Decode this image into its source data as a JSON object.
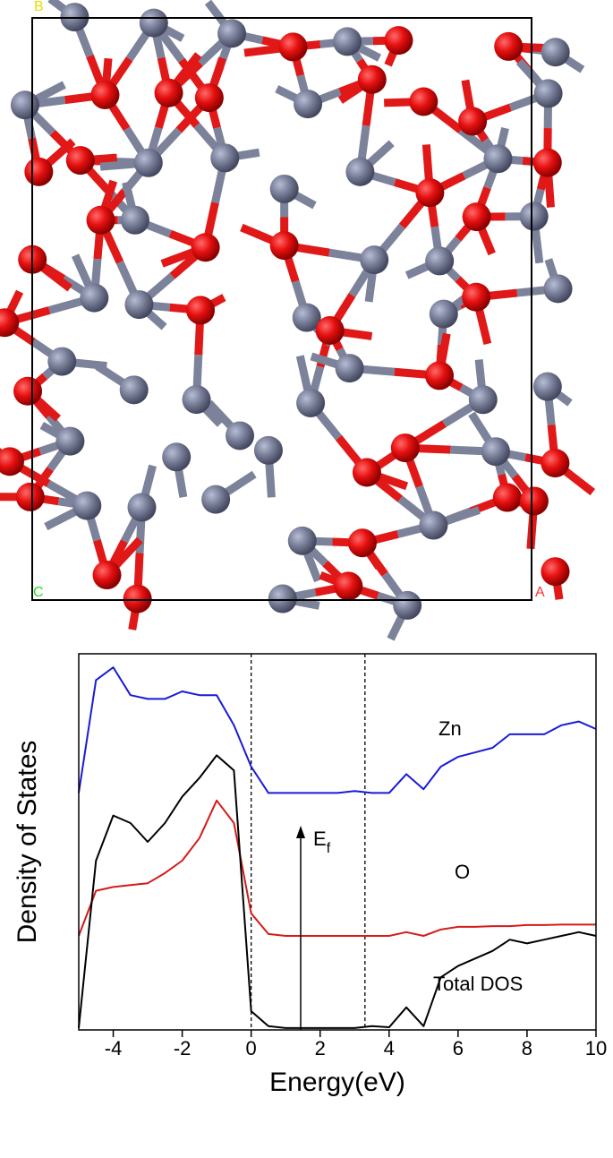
{
  "structure": {
    "labels": [
      "B",
      "C",
      "A"
    ]
  },
  "chart_data": {
    "type": "line",
    "xlabel": "Energy(eV)",
    "ylabel": "Density of States",
    "x": [
      -5,
      -4.5,
      -4,
      -3.5,
      -3,
      -2.5,
      -2,
      -1.5,
      -1,
      -0.5,
      0,
      0.5,
      1,
      1.5,
      2,
      2.5,
      3,
      3.5,
      4,
      4.5,
      5,
      5.5,
      6,
      6.5,
      7,
      7.5,
      8,
      8.5,
      9,
      9.5,
      10
    ],
    "xlim": [
      -5,
      10
    ],
    "xticks": [
      -4,
      -2,
      0,
      2,
      4,
      6,
      8,
      10
    ],
    "ylim": [
      0,
      100
    ],
    "vlines": [
      0,
      3.3
    ],
    "annotation": {
      "text": "E",
      "subscript": "f"
    },
    "series": [
      {
        "name": "Zn",
        "color": "#1a1ad6",
        "values": [
          63,
          93,
          96.4,
          89,
          88,
          88,
          90,
          89,
          89,
          81,
          70,
          63,
          63,
          63,
          63,
          63,
          63.5,
          63,
          63,
          68,
          64,
          70,
          72.6,
          73.8,
          75,
          78.6,
          78.6,
          78.6,
          81,
          82,
          80
        ]
      },
      {
        "name": "O",
        "color": "#d61a1a",
        "values": [
          25,
          37,
          38,
          38.5,
          39,
          41.7,
          45,
          51,
          61,
          55,
          31,
          25.5,
          25,
          25,
          25,
          25,
          25,
          25,
          25,
          26,
          25,
          26.7,
          27.4,
          27.4,
          27.6,
          27.6,
          27.9,
          27.9,
          28,
          28,
          28
        ]
      },
      {
        "name": "Total DOS",
        "color": "#000000",
        "values": [
          0.5,
          45,
          57,
          55,
          50,
          55,
          62,
          67,
          73,
          69,
          5,
          1,
          0.5,
          0.5,
          0.5,
          0.5,
          0.5,
          1,
          0.7,
          6,
          1,
          14,
          17,
          19,
          21,
          24,
          23,
          24,
          25,
          26,
          25
        ]
      }
    ]
  }
}
